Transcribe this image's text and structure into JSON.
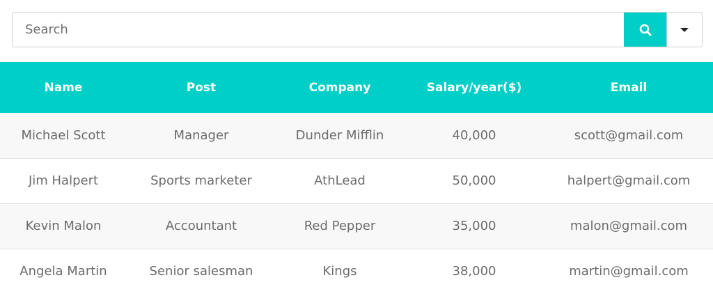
{
  "search": {
    "placeholder": "Search",
    "value": ""
  },
  "icons": {
    "search": "search-icon",
    "dropdown": "chevron-down-icon"
  },
  "colors": {
    "accent": "#00cfc8",
    "header_text": "#ffffff",
    "body_text": "#6b6b6b"
  },
  "table": {
    "headers": [
      "Name",
      "Post",
      "Company",
      "Salary/year($)",
      "Email"
    ],
    "rows": [
      [
        "Michael Scott",
        "Manager",
        "Dunder Mifflin",
        "40,000",
        "scott@gmail.com"
      ],
      [
        "Jim Halpert",
        "Sports marketer",
        "AthLead",
        "50,000",
        "halpert@gmail.com"
      ],
      [
        "Kevin Malon",
        "Accountant",
        "Red Pepper",
        "35,000",
        "malon@gmail.com"
      ],
      [
        "Angela Martin",
        "Senior salesman",
        "Kings",
        "38,000",
        "martin@gmail.com"
      ]
    ]
  }
}
